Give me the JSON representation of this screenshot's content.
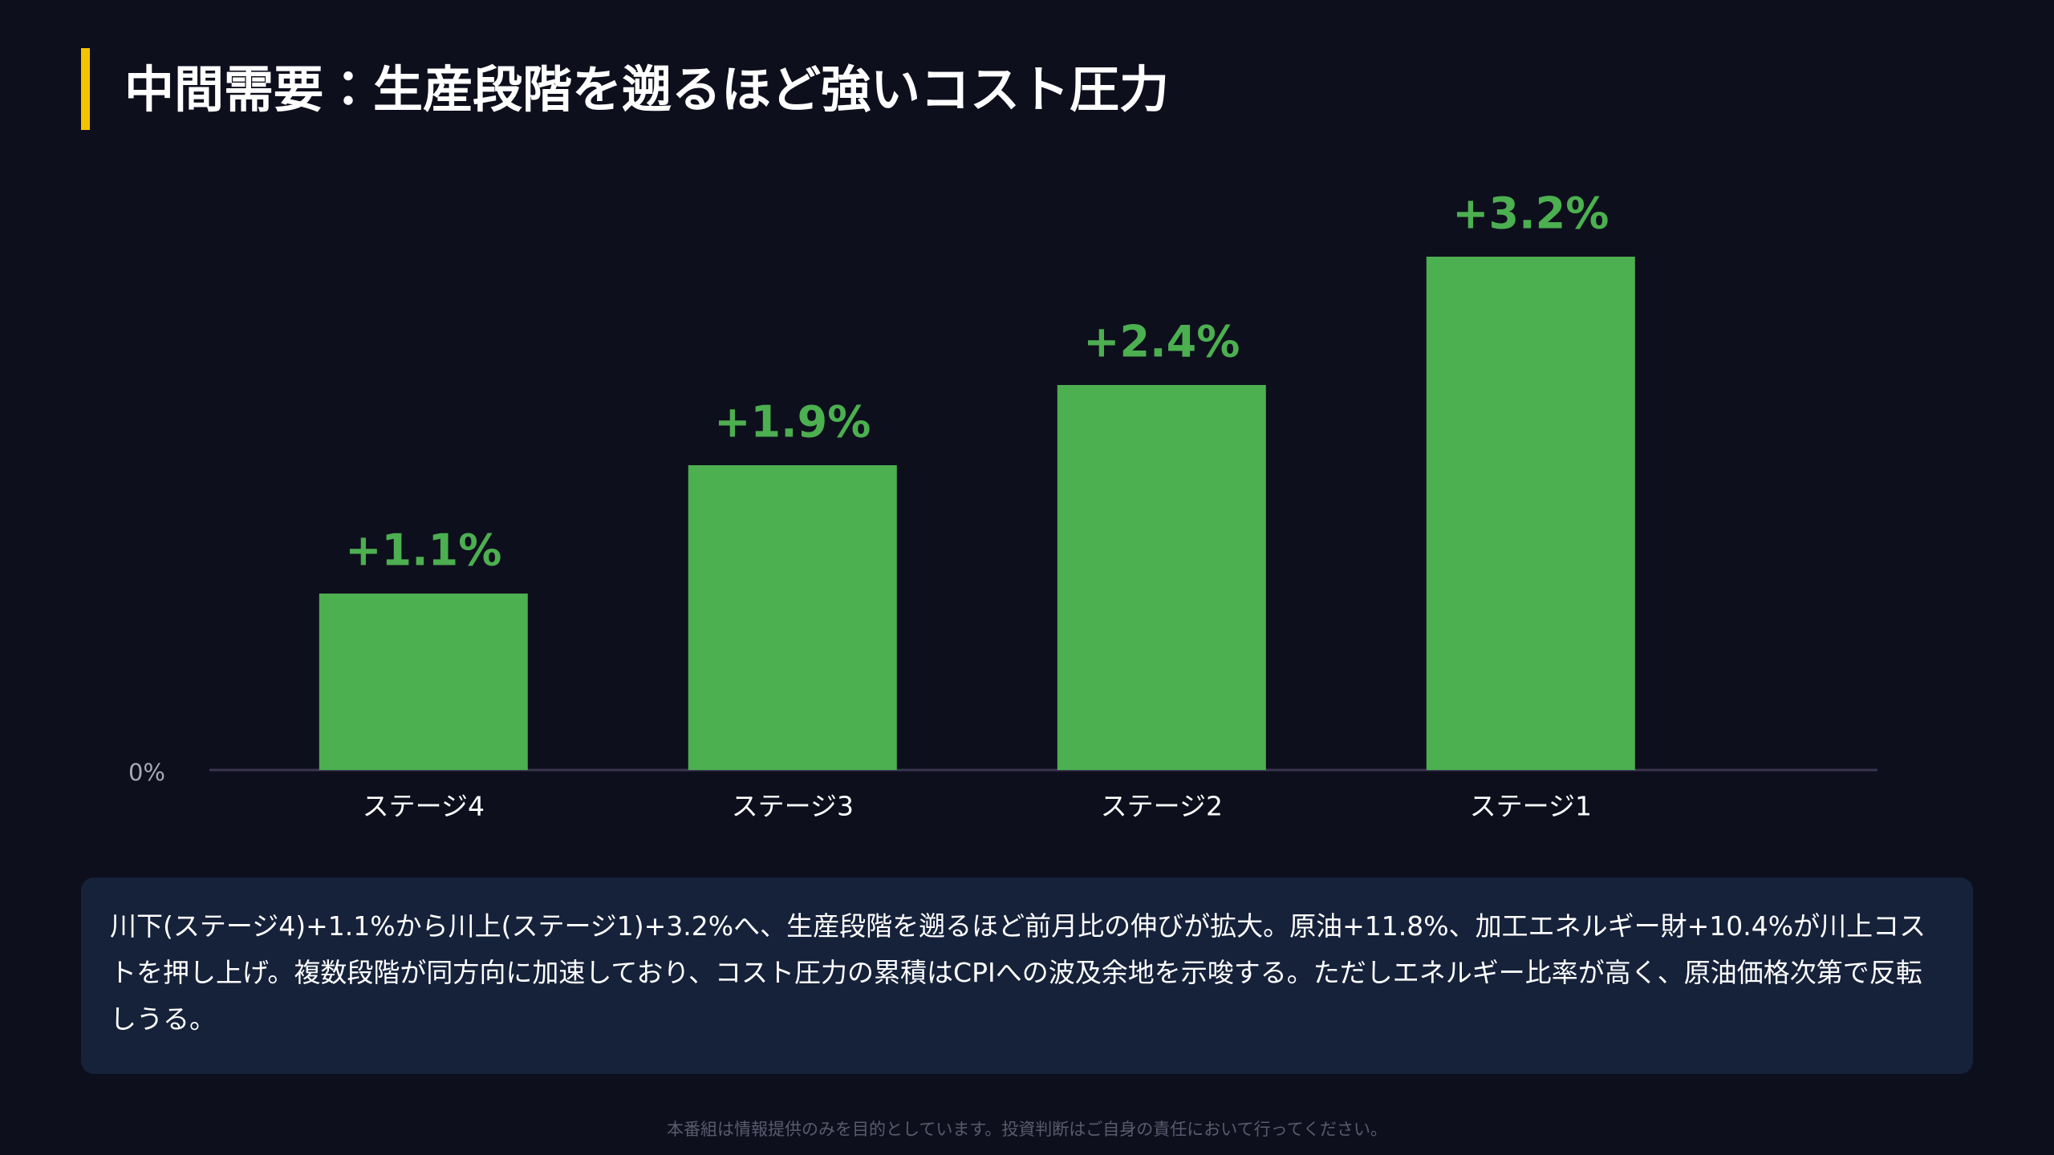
{
  "chart_data": {
    "type": "bar",
    "title": "中間需要：生産段階を遡るほど強いコスト圧力",
    "categories": [
      "ステージ4",
      "ステージ3",
      "ステージ2",
      "ステージ1"
    ],
    "values": [
      1.1,
      1.9,
      2.4,
      3.2
    ],
    "value_labels": [
      "+1.1%",
      "+1.9%",
      "+2.4%",
      "+3.2%"
    ],
    "color": "#4caf50",
    "ylim": [
      0,
      3.2
    ],
    "yticks": [
      {
        "value": 0,
        "label": "0%"
      }
    ],
    "grid": false
  },
  "note": "川下(ステージ4)+1.1%から川上(ステージ1)+3.2%へ、生産段階を遡るほど前月比の伸びが拡大。原油+11.8%、加工エネルギー財+10.4%が川上コストを押し上げ。複数段階が同方向に加速しており、コスト圧力の累積はCPIへの波及余地を示唆する。ただしエネルギー比率が高く、原油価格次第で反転しうる。",
  "footer": "本番組は情報提供のみを目的としています。投資判断はご自身の責任において行ってください。"
}
